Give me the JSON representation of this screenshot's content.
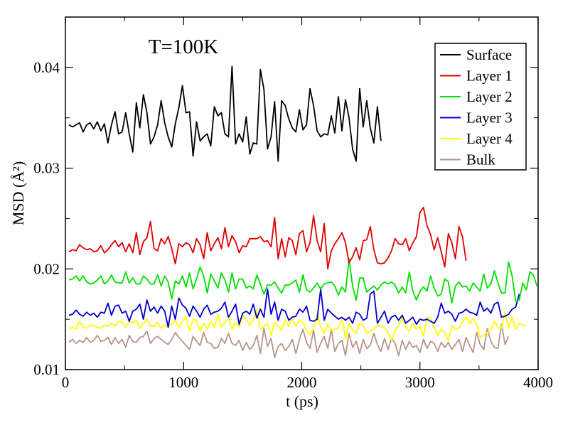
{
  "chart_data": {
    "type": "line",
    "annotation": "T=100K",
    "xlabel": "t (ps)",
    "ylabel": "MSD (Å²)",
    "xlim": [
      0,
      4000
    ],
    "ylim": [
      0.01,
      0.045
    ],
    "xticks": [
      "0",
      "1000",
      "2000",
      "3000",
      "4000"
    ],
    "yticks": [
      "0.01",
      "0.02",
      "0.03",
      "0.04"
    ],
    "grid": false,
    "legend_position": "top-right",
    "x_start": 30,
    "x_step": 30,
    "series": [
      {
        "name": "Surface",
        "color": "#000000",
        "values": [
          0.0343,
          0.0341,
          0.0343,
          0.0345,
          0.0336,
          0.0343,
          0.0345,
          0.0339,
          0.0346,
          0.0337,
          0.0344,
          0.0325,
          0.0343,
          0.0356,
          0.0334,
          0.0336,
          0.0355,
          0.0334,
          0.0316,
          0.0365,
          0.034,
          0.0373,
          0.0355,
          0.0324,
          0.0331,
          0.0343,
          0.0367,
          0.0345,
          0.0331,
          0.0321,
          0.0344,
          0.036,
          0.0382,
          0.0355,
          0.0356,
          0.0312,
          0.0346,
          0.0327,
          0.0331,
          0.0334,
          0.0322,
          0.0361,
          0.0352,
          0.0355,
          0.0334,
          0.0331,
          0.0401,
          0.0324,
          0.0334,
          0.0326,
          0.0351,
          0.0314,
          0.0325,
          0.0324,
          0.0398,
          0.0378,
          0.0319,
          0.0331,
          0.0366,
          0.0307,
          0.0367,
          0.0362,
          0.0349,
          0.034,
          0.0336,
          0.0358,
          0.0338,
          0.0343,
          0.0379,
          0.0362,
          0.0337,
          0.0331,
          0.0334,
          0.0333,
          0.0352,
          0.0335,
          0.0371,
          0.0337,
          0.0368,
          0.035,
          0.0319,
          0.0307,
          0.0379,
          0.0341,
          0.0367,
          0.034,
          0.0325,
          0.0361,
          0.0327
        ]
      },
      {
        "name": "Layer 1",
        "color": "#e00000",
        "values": [
          0.0217,
          0.0219,
          0.0218,
          0.0224,
          0.0221,
          0.0219,
          0.022,
          0.0217,
          0.0218,
          0.0223,
          0.0216,
          0.0219,
          0.0224,
          0.0228,
          0.0222,
          0.0226,
          0.0217,
          0.0225,
          0.0216,
          0.0236,
          0.0214,
          0.0227,
          0.0231,
          0.0247,
          0.022,
          0.0218,
          0.023,
          0.0225,
          0.0232,
          0.022,
          0.0205,
          0.0225,
          0.0222,
          0.0226,
          0.0224,
          0.0216,
          0.023,
          0.0224,
          0.021,
          0.0236,
          0.0218,
          0.0225,
          0.0231,
          0.022,
          0.0241,
          0.0222,
          0.0233,
          0.0227,
          0.0216,
          0.0223,
          0.0222,
          0.023,
          0.023,
          0.023,
          0.0232,
          0.0227,
          0.0228,
          0.0222,
          0.0251,
          0.021,
          0.023,
          0.0212,
          0.0231,
          0.0228,
          0.0214,
          0.0235,
          0.0238,
          0.0217,
          0.0226,
          0.0253,
          0.0228,
          0.0217,
          0.0245,
          0.02,
          0.0218,
          0.0225,
          0.023,
          0.0236,
          0.0226,
          0.0206,
          0.0212,
          0.0221,
          0.0209,
          0.0228,
          0.0229,
          0.0242,
          0.0219,
          0.0206,
          0.0205,
          0.0206,
          0.0211,
          0.0218,
          0.023,
          0.0225,
          0.0224,
          0.023,
          0.0218,
          0.0226,
          0.0232,
          0.0256,
          0.0261,
          0.0243,
          0.0234,
          0.0219,
          0.0231,
          0.0217,
          0.0202,
          0.0235,
          0.0226,
          0.021,
          0.0242,
          0.0232,
          0.0208
        ]
      },
      {
        "name": "Layer 2",
        "color": "#00e000",
        "values": [
          0.0189,
          0.019,
          0.0193,
          0.0188,
          0.0193,
          0.0187,
          0.0185,
          0.0186,
          0.0189,
          0.0193,
          0.0185,
          0.0188,
          0.0194,
          0.0187,
          0.0186,
          0.0186,
          0.0197,
          0.0186,
          0.0191,
          0.0185,
          0.0185,
          0.0193,
          0.019,
          0.0185,
          0.0185,
          0.0194,
          0.0183,
          0.0193,
          0.0187,
          0.017,
          0.0188,
          0.0185,
          0.0193,
          0.0182,
          0.0196,
          0.018,
          0.019,
          0.0202,
          0.0193,
          0.0176,
          0.0195,
          0.0188,
          0.0181,
          0.0196,
          0.0189,
          0.0177,
          0.0196,
          0.018,
          0.019,
          0.019,
          0.0181,
          0.0183,
          0.018,
          0.0194,
          0.0185,
          0.0175,
          0.0184,
          0.0184,
          0.0187,
          0.0181,
          0.0176,
          0.0184,
          0.0184,
          0.0186,
          0.0189,
          0.0177,
          0.0194,
          0.0179,
          0.0177,
          0.0181,
          0.0186,
          0.018,
          0.0185,
          0.0186,
          0.0187,
          0.0183,
          0.0174,
          0.0182,
          0.0177,
          0.021,
          0.0183,
          0.0169,
          0.0191,
          0.0191,
          0.0177,
          0.018,
          0.0183,
          0.0179,
          0.0184,
          0.0187,
          0.0185,
          0.0187,
          0.0184,
          0.0176,
          0.0182,
          0.0176,
          0.0197,
          0.0178,
          0.0169,
          0.0178,
          0.0182,
          0.0178,
          0.0193,
          0.0181,
          0.0173,
          0.0175,
          0.019,
          0.0187,
          0.0166,
          0.0183,
          0.0187,
          0.0182,
          0.0183,
          0.0178,
          0.0186,
          0.0182,
          0.0178,
          0.0195,
          0.0181,
          0.0185,
          0.0198,
          0.0186,
          0.0176,
          0.0176,
          0.0207,
          0.0193,
          0.0168,
          0.0169,
          0.0186,
          0.0179,
          0.0197,
          0.0194,
          0.0183
        ]
      },
      {
        "name": "Layer 3",
        "color": "#0000d0",
        "values": [
          0.0154,
          0.0155,
          0.0159,
          0.0155,
          0.0153,
          0.0157,
          0.0154,
          0.0156,
          0.0152,
          0.0157,
          0.0156,
          0.0166,
          0.0154,
          0.0163,
          0.0164,
          0.0156,
          0.0158,
          0.0148,
          0.0158,
          0.016,
          0.0165,
          0.015,
          0.0169,
          0.0158,
          0.0162,
          0.0156,
          0.0163,
          0.0158,
          0.0142,
          0.0163,
          0.015,
          0.0171,
          0.0164,
          0.0161,
          0.0153,
          0.0163,
          0.0158,
          0.0152,
          0.016,
          0.0164,
          0.0155,
          0.0157,
          0.0158,
          0.0161,
          0.0167,
          0.0152,
          0.0158,
          0.0165,
          0.0145,
          0.0156,
          0.0158,
          0.0155,
          0.0165,
          0.0151,
          0.016,
          0.0152,
          0.018,
          0.0155,
          0.0167,
          0.0149,
          0.016,
          0.0158,
          0.0149,
          0.0152,
          0.0153,
          0.016,
          0.0157,
          0.0163,
          0.0149,
          0.0148,
          0.015,
          0.018,
          0.0149,
          0.016,
          0.0156,
          0.0153,
          0.015,
          0.0152,
          0.0149,
          0.0152,
          0.0146,
          0.0157,
          0.0155,
          0.0149,
          0.0151,
          0.0175,
          0.0178,
          0.0146,
          0.0152,
          0.0158,
          0.0146,
          0.0152,
          0.0154,
          0.0149,
          0.0154,
          0.0146,
          0.0149,
          0.0152,
          0.0145,
          0.015,
          0.0149,
          0.015,
          0.0148,
          0.0146,
          0.0152,
          0.0166,
          0.0156,
          0.0158,
          0.0155,
          0.0148,
          0.0156,
          0.0157,
          0.016,
          0.0157,
          0.0156,
          0.0154,
          0.0167,
          0.0158,
          0.0161,
          0.0156,
          0.0165,
          0.0167,
          0.0152,
          0.0153,
          0.0155,
          0.016,
          0.0162,
          0.0175
        ]
      },
      {
        "name": "Layer 4",
        "color": "#ffff00",
        "values": [
          0.0141,
          0.0142,
          0.014,
          0.0148,
          0.0142,
          0.0141,
          0.0144,
          0.0144,
          0.0142,
          0.0141,
          0.0144,
          0.0143,
          0.0146,
          0.0143,
          0.0148,
          0.0147,
          0.0142,
          0.0148,
          0.0146,
          0.0149,
          0.0141,
          0.0146,
          0.015,
          0.0143,
          0.0143,
          0.0147,
          0.0141,
          0.0144,
          0.0143,
          0.0145,
          0.0149,
          0.0142,
          0.0148,
          0.0153,
          0.0138,
          0.015,
          0.0149,
          0.0138,
          0.0146,
          0.014,
          0.0148,
          0.0142,
          0.0155,
          0.0142,
          0.0147,
          0.0151,
          0.014,
          0.0147,
          0.0142,
          0.0154,
          0.015,
          0.0144,
          0.015,
          0.016,
          0.014,
          0.0143,
          0.0146,
          0.0134,
          0.0147,
          0.0143,
          0.0139,
          0.015,
          0.0143,
          0.0151,
          0.0143,
          0.0149,
          0.0147,
          0.0139,
          0.0135,
          0.0141,
          0.0155,
          0.0142,
          0.0136,
          0.0145,
          0.0139,
          0.014,
          0.0141,
          0.0152,
          0.013,
          0.0146,
          0.0139,
          0.0136,
          0.0146,
          0.0144,
          0.0136,
          0.0138,
          0.014,
          0.0144,
          0.0143,
          0.0142,
          0.0137,
          0.0129,
          0.0139,
          0.0144,
          0.0152,
          0.0142,
          0.0138,
          0.0146,
          0.014,
          0.0143,
          0.0133,
          0.0152,
          0.0151,
          0.0142,
          0.0134,
          0.014,
          0.0137,
          0.0129,
          0.0144,
          0.014,
          0.0141,
          0.0147,
          0.0152,
          0.0146,
          0.0151,
          0.0145,
          0.0132,
          0.0134,
          0.0137,
          0.0139,
          0.0148,
          0.0142,
          0.0141,
          0.0157,
          0.0141,
          0.0152,
          0.014,
          0.0146,
          0.0144,
          0.0144
        ]
      },
      {
        "name": "Bulk",
        "color": "#b8938a",
        "values": [
          0.0127,
          0.013,
          0.0126,
          0.0129,
          0.0127,
          0.0132,
          0.0127,
          0.0129,
          0.0134,
          0.0128,
          0.0129,
          0.0132,
          0.0125,
          0.0132,
          0.0126,
          0.013,
          0.0122,
          0.0134,
          0.0128,
          0.0127,
          0.0132,
          0.0133,
          0.0138,
          0.0126,
          0.0131,
          0.0133,
          0.013,
          0.0127,
          0.0125,
          0.013,
          0.0137,
          0.0132,
          0.0128,
          0.0124,
          0.012,
          0.0133,
          0.0128,
          0.0124,
          0.0137,
          0.0127,
          0.0126,
          0.0121,
          0.0122,
          0.0131,
          0.0126,
          0.0136,
          0.0126,
          0.0124,
          0.0129,
          0.0119,
          0.0127,
          0.012,
          0.0124,
          0.0134,
          0.0116,
          0.0141,
          0.0123,
          0.0131,
          0.0112,
          0.0123,
          0.0126,
          0.0119,
          0.0123,
          0.013,
          0.0116,
          0.013,
          0.014,
          0.0127,
          0.0121,
          0.0139,
          0.0117,
          0.0126,
          0.0133,
          0.0121,
          0.014,
          0.0118,
          0.0126,
          0.0129,
          0.0114,
          0.0136,
          0.0122,
          0.0128,
          0.0116,
          0.013,
          0.0121,
          0.0124,
          0.0136,
          0.0125,
          0.0118,
          0.0131,
          0.012,
          0.0131,
          0.0126,
          0.0114,
          0.0129,
          0.012,
          0.0128,
          0.0122,
          0.0124,
          0.0117,
          0.013,
          0.0121,
          0.0128,
          0.0126,
          0.0118,
          0.0127,
          0.0122,
          0.0127,
          0.012,
          0.0125,
          0.013,
          0.0118,
          0.0132,
          0.0124,
          0.0117,
          0.0137,
          0.0125,
          0.012,
          0.0141,
          0.0128,
          0.0122,
          0.0121,
          0.0145,
          0.0125,
          0.0133
        ]
      }
    ]
  }
}
